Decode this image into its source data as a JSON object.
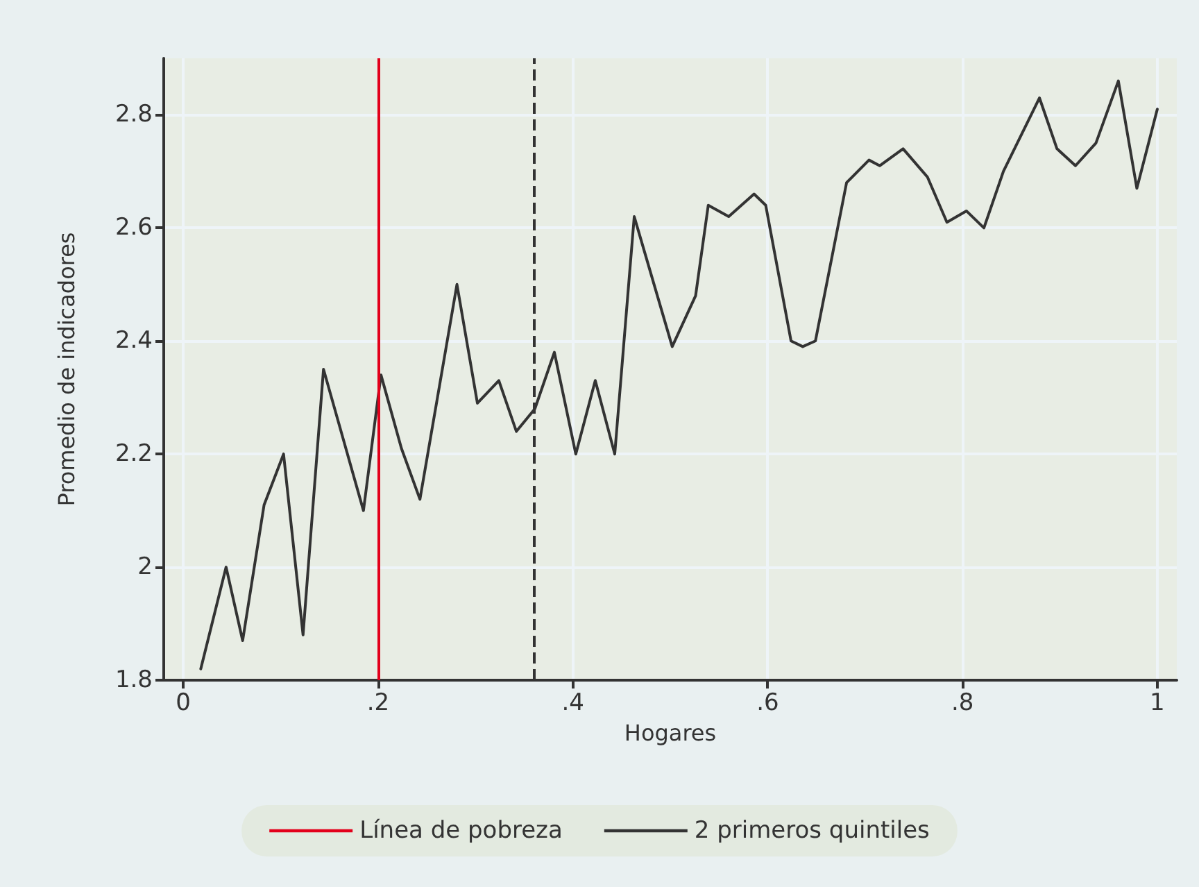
{
  "chart_data": {
    "type": "line",
    "xlabel": "Hogares",
    "ylabel": "Promedio de indicadores",
    "series": [
      {
        "color": "#333333",
        "x": [
          0.018,
          0.044,
          0.061,
          0.083,
          0.103,
          0.123,
          0.144,
          0.185,
          0.203,
          0.224,
          0.243,
          0.281,
          0.302,
          0.324,
          0.342,
          0.361,
          0.381,
          0.403,
          0.423,
          0.443,
          0.463,
          0.502,
          0.526,
          0.539,
          0.56,
          0.586,
          0.598,
          0.624,
          0.636,
          0.649,
          0.681,
          0.704,
          0.715,
          0.739,
          0.764,
          0.784,
          0.804,
          0.822,
          0.842,
          0.879,
          0.897,
          0.916,
          0.937,
          0.96,
          0.979,
          1.0
        ],
        "values": [
          1.82,
          2.0,
          1.87,
          2.11,
          2.2,
          1.88,
          2.35,
          2.1,
          2.34,
          2.21,
          2.12,
          2.5,
          2.29,
          2.33,
          2.24,
          2.28,
          2.38,
          2.2,
          2.33,
          2.2,
          2.62,
          2.39,
          2.48,
          2.64,
          2.62,
          2.66,
          2.64,
          2.4,
          2.39,
          2.4,
          2.68,
          2.72,
          2.71,
          2.74,
          2.69,
          2.61,
          2.63,
          2.6,
          2.7,
          2.83,
          2.74,
          2.71,
          2.75,
          2.86,
          2.67,
          2.81
        ]
      }
    ],
    "xlim": [
      -0.02,
      1.02
    ],
    "xticks": [
      0,
      {
        "value": 0.2,
        "label": ".2"
      },
      {
        "value": 0.4,
        "label": ".4"
      },
      {
        "value": 0.6,
        "label": ".6"
      },
      {
        "value": 0.8,
        "label": ".8"
      },
      1
    ],
    "ylim": [
      1.8,
      2.9
    ],
    "yticks": [
      1.8,
      2,
      2.2,
      2.4,
      2.6,
      2.8
    ],
    "ref_lines": [
      {
        "axis": "x",
        "value": 0.2,
        "label": "Línea de pobreza",
        "color": "#e3001b",
        "line_style": "solid"
      },
      {
        "axis": "x",
        "value": 0.36,
        "label": "2 primeros quintiles",
        "color": "#333333",
        "line_style": "dashed"
      }
    ],
    "grid": true,
    "legend": "bottom",
    "marker": "none",
    "line_style": "solid"
  }
}
